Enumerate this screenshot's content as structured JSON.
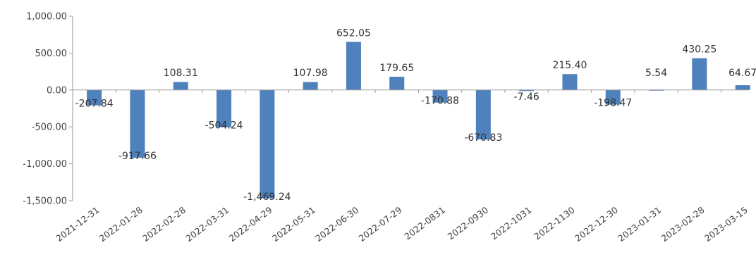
{
  "chart_data": {
    "type": "bar",
    "title": "",
    "xlabel": "",
    "ylabel": "",
    "ylim": [
      -1500,
      1000
    ],
    "yticks": [
      1000,
      500,
      0,
      -500,
      -1000,
      -1500
    ],
    "ytick_labels": [
      "1,000.00",
      "500.00",
      "0.00",
      "-500.00",
      "-1,000.00",
      "-1,500.00"
    ],
    "grid": false,
    "legend": "none",
    "bar_color": "#4F81BD",
    "categories": [
      "2021-12-31",
      "2022-01-28",
      "2022-02-28",
      "2022-03-31",
      "2022-04-29",
      "2022-05-31",
      "2022-06-30",
      "2022-07-29",
      "2022-0831",
      "2022-0930",
      "2022-1031",
      "2022-1130",
      "2022-12-30",
      "2023-01-31",
      "2023-02-28",
      "2023-03-15"
    ],
    "values": [
      -207.84,
      -917.66,
      108.31,
      -504.24,
      -1469.24,
      107.98,
      652.05,
      179.65,
      -170.88,
      -670.83,
      -7.46,
      215.4,
      -198.47,
      5.54,
      430.25,
      64.67
    ],
    "value_labels": [
      "-207.84",
      "-917.66",
      "108.31",
      "-504.24",
      "-1,469.24",
      "107.98",
      "652.05",
      "179.65",
      "-170.88",
      "-670.83",
      "-7.46",
      "215.40",
      "-198.47",
      "5.54",
      "430.25",
      "64.67"
    ]
  }
}
